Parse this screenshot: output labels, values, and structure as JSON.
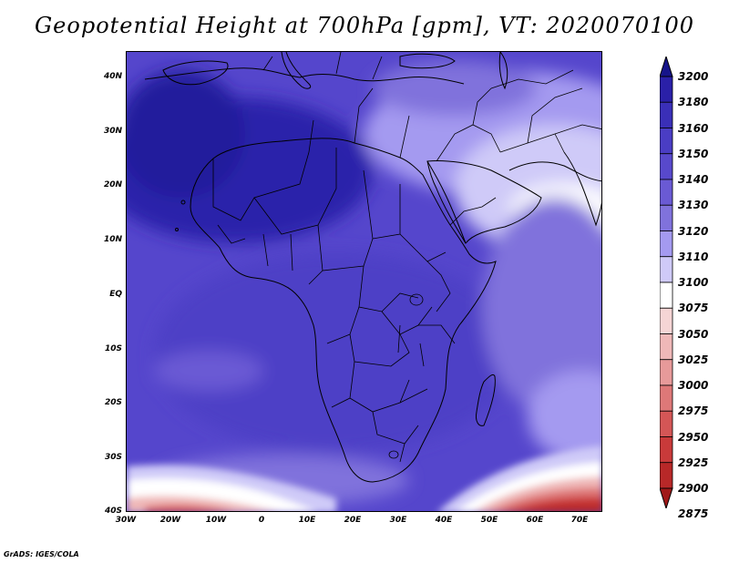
{
  "title": "Geopotential Height at 700hPa [gpm], VT: 2020070100",
  "footer": "GrADS: IGES/COLA",
  "map": {
    "lat_labels": [
      "40N",
      "30N",
      "20N",
      "10N",
      "EQ",
      "10S",
      "20S",
      "30S",
      "40S"
    ],
    "lon_labels": [
      "30W",
      "20W",
      "10W",
      "0",
      "10E",
      "20E",
      "30E",
      "40E",
      "50E",
      "60E",
      "70E"
    ]
  },
  "colorbar": {
    "levels": [
      "3200",
      "3180",
      "3160",
      "3150",
      "3140",
      "3130",
      "3120",
      "3110",
      "3100",
      "3075",
      "3050",
      "3025",
      "3000",
      "2975",
      "2950",
      "2925",
      "2900",
      "2875"
    ],
    "colors": [
      "#16148a",
      "#2a20a8",
      "#3a2fb8",
      "#4a3dc4",
      "#5849cc",
      "#6a5ad4",
      "#8072dc",
      "#a49af0",
      "#cfcaf8",
      "#ffffff",
      "#f5d5d5",
      "#efb8b8",
      "#e79a9a",
      "#de7878",
      "#d45656",
      "#c93a3a",
      "#b82828",
      "#a01818"
    ]
  }
}
